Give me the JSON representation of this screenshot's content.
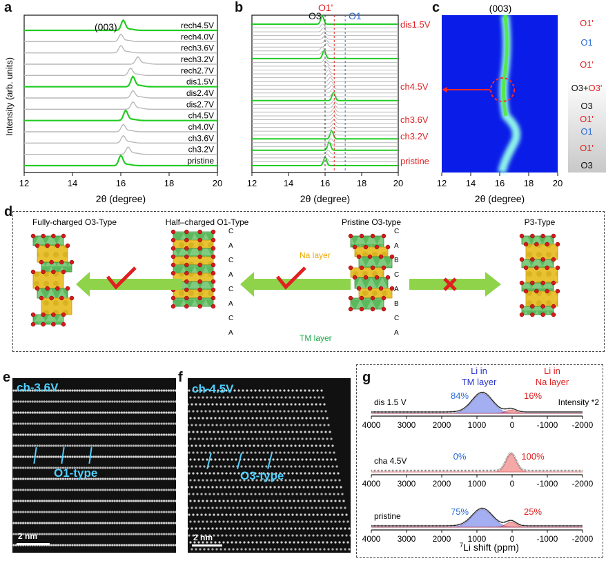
{
  "panels": {
    "a": {
      "letter": "a",
      "peak_label": "(003)",
      "ylabel": "Intensity (arb. units)",
      "xlabel": "2θ (degree)",
      "xticks": [
        "12",
        "14",
        "16",
        "18",
        "20"
      ]
    },
    "b": {
      "letter": "b",
      "top_labels": {
        "o3": "O3",
        "o1p": "O1'",
        "o1": "O1"
      },
      "xlabel": "2θ (degree)",
      "xticks": [
        "12",
        "14",
        "16",
        "18",
        "20"
      ],
      "side_labels": [
        "dis1.5V",
        "ch4.5V",
        "ch3.6V",
        "ch3.2V",
        "pristine"
      ]
    },
    "c": {
      "letter": "c",
      "peak_label": "(003)",
      "xlabel": "2θ (degree)",
      "xticks": [
        "12",
        "14",
        "16",
        "18",
        "20"
      ],
      "phase_labels": [
        {
          "parts": [
            {
              "t": "O1'",
              "c": "#e02020"
            }
          ]
        },
        {
          "parts": [
            {
              "t": "O1",
              "c": "#2a6bd8"
            }
          ]
        },
        {
          "parts": [
            {
              "t": "O1'",
              "c": "#e02020"
            }
          ]
        },
        {
          "parts": [
            {
              "t": "O3+",
              "c": "#111111"
            },
            {
              "t": "O3'",
              "c": "#e02020"
            }
          ]
        },
        {
          "parts": [
            {
              "t": "O3",
              "c": "#111111"
            }
          ]
        },
        {
          "parts": [
            {
              "t": "O1'",
              "c": "#e02020"
            }
          ]
        },
        {
          "parts": [
            {
              "t": "O1",
              "c": "#2a6bd8"
            }
          ]
        },
        {
          "parts": [
            {
              "t": "O1'",
              "c": "#e02020"
            }
          ]
        },
        {
          "parts": [
            {
              "t": "O3",
              "c": "#111111"
            }
          ]
        }
      ]
    },
    "d": {
      "letter": "d",
      "titles": [
        "Fully-charged O3-Type",
        "Half–charged O1-Type",
        "Pristine O3-type",
        "P3-Type"
      ],
      "na_layer": "Na layer",
      "tm_layer": "TM layer",
      "o1_stack": [
        "C",
        "A",
        "C",
        "A",
        "C",
        "A",
        "C",
        "A"
      ],
      "o3_stack": [
        "C",
        "A",
        "B",
        "C",
        "A",
        "B",
        "C",
        "A"
      ]
    },
    "e": {
      "letter": "e",
      "label": "ch-3.6V",
      "type_label": "O1-type",
      "scale": "2 nm"
    },
    "f": {
      "letter": "f",
      "label": "ch-4.5V",
      "type_label": "O3-type",
      "scale": "2 nm"
    },
    "g": {
      "letter": "g",
      "legend_tm": [
        "Li in",
        "TM layer"
      ],
      "legend_na": [
        "Li in",
        "Na layer"
      ],
      "rows": [
        {
          "name": "dis 1.5 V",
          "tm_pct": "84%",
          "na_pct": "16%",
          "note": "Intensity *2"
        },
        {
          "name": "cha 4.5V",
          "tm_pct": "0%",
          "na_pct": "100%",
          "note": ""
        },
        {
          "name": "pristine",
          "tm_pct": "75%",
          "na_pct": "25%",
          "note": ""
        }
      ],
      "xticks": [
        "4000",
        "3000",
        "2000",
        "1000",
        "0",
        "-1000",
        "-2000"
      ],
      "xlabel_sup": "7",
      "xlabel": "Li shift (ppm)"
    }
  },
  "colors": {
    "green": "#22cc22",
    "gray": "#b8b8b8",
    "red": "#e02020",
    "blue": "#2a6bd8",
    "heat_bg": "#0a1de8"
  },
  "chart_data": [
    {
      "type": "line",
      "panel": "a",
      "xlabel": "2θ (degree)",
      "ylabel": "Intensity (arb. units)",
      "xlim": [
        12,
        20
      ],
      "series": [
        {
          "name": "pristine",
          "peak": 16.0,
          "highlight": true
        },
        {
          "name": "ch3.2V",
          "peak": 16.3,
          "highlight": false
        },
        {
          "name": "ch3.6V",
          "peak": 16.1,
          "highlight": false
        },
        {
          "name": "ch4.0V",
          "peak": 16.1,
          "highlight": false
        },
        {
          "name": "ch4.5V",
          "peak": 16.2,
          "highlight": true
        },
        {
          "name": "dis2.7V",
          "peak": 16.5,
          "highlight": false
        },
        {
          "name": "dis2.4V",
          "peak": 16.5,
          "highlight": false
        },
        {
          "name": "dis1.5V",
          "peak": 16.5,
          "highlight": true
        },
        {
          "name": "rech2.7V",
          "peak": 16.4,
          "highlight": false
        },
        {
          "name": "rech3.2V",
          "peak": 16.7,
          "highlight": false
        },
        {
          "name": "rech3.6V",
          "peak": 16.0,
          "highlight": false
        },
        {
          "name": "rech4.0V",
          "peak": 16.0,
          "highlight": false
        },
        {
          "name": "rech4.5V",
          "peak": 16.1,
          "highlight": true
        }
      ]
    },
    {
      "type": "line",
      "panel": "b",
      "xlabel": "2θ (degree)",
      "xlim": [
        12,
        20
      ],
      "reference_lines": {
        "O3": 16.0,
        "O1'": 16.5,
        "O1": 17.1
      }
    },
    {
      "type": "heatmap",
      "panel": "c",
      "xlabel": "2θ (degree)",
      "xlim": [
        12,
        20
      ]
    },
    {
      "type": "area",
      "panel": "g",
      "xlabel": "7Li shift (ppm)",
      "xlim": [
        4000,
        -2000
      ],
      "series": [
        {
          "name": "dis 1.5 V",
          "tm_fraction": 84,
          "na_fraction": 16
        },
        {
          "name": "cha 4.5V",
          "tm_fraction": 0,
          "na_fraction": 100
        },
        {
          "name": "pristine",
          "tm_fraction": 75,
          "na_fraction": 25
        }
      ]
    }
  ]
}
